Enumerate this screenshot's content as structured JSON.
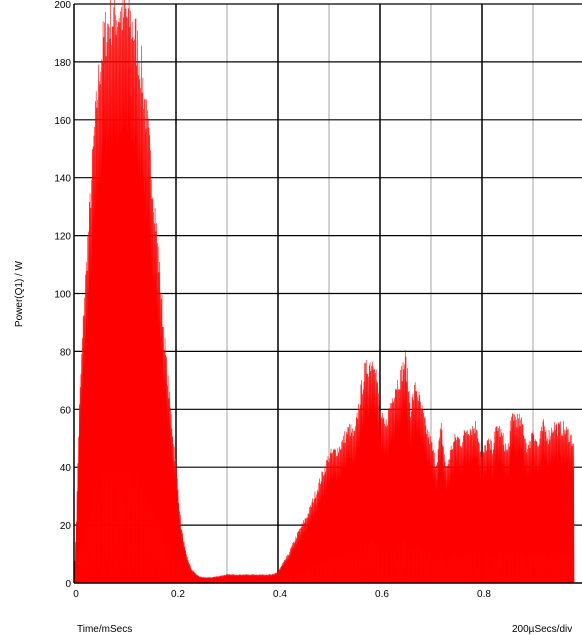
{
  "chart_data": {
    "type": "area",
    "title": "",
    "xlabel": "Time/mSecs",
    "ylabel": "Power(Q1) / W",
    "timebase_label": "200µSecs/div",
    "xlim": [
      0,
      0.98
    ],
    "ylim": [
      0,
      200
    ],
    "x_ticks": [
      0,
      0.2,
      0.4,
      0.6,
      0.8
    ],
    "x_tick_labels": [
      "0",
      "0.2",
      "0.4",
      "0.6",
      "0.8"
    ],
    "y_ticks": [
      0,
      20,
      40,
      60,
      80,
      100,
      120,
      140,
      160,
      180,
      200
    ],
    "y_tick_labels": [
      "0",
      "20",
      "40",
      "60",
      "80",
      "100",
      "120",
      "140",
      "160",
      "180",
      "200"
    ],
    "grid": true,
    "series": [
      {
        "color": "#ff0000",
        "x": [
          0,
          0.005,
          0.01,
          0.02,
          0.03,
          0.04,
          0.05,
          0.06,
          0.07,
          0.08,
          0.09,
          0.1,
          0.11,
          0.12,
          0.13,
          0.14,
          0.15,
          0.16,
          0.17,
          0.18,
          0.19,
          0.2,
          0.21,
          0.22,
          0.23,
          0.24,
          0.25,
          0.27,
          0.3,
          0.33,
          0.36,
          0.39,
          0.4,
          0.42,
          0.44,
          0.46,
          0.48,
          0.5,
          0.52,
          0.54,
          0.55,
          0.56,
          0.57,
          0.58,
          0.59,
          0.6,
          0.61,
          0.62,
          0.63,
          0.64,
          0.65,
          0.66,
          0.67,
          0.68,
          0.69,
          0.7,
          0.71,
          0.72,
          0.73,
          0.74,
          0.75,
          0.76,
          0.77,
          0.78,
          0.79,
          0.8,
          0.81,
          0.82,
          0.83,
          0.84,
          0.85,
          0.86,
          0.87,
          0.88,
          0.89,
          0.9,
          0.91,
          0.92,
          0.93,
          0.94,
          0.95,
          0.96,
          0.97,
          0.98
        ],
        "values": [
          0,
          25,
          60,
          100,
          130,
          160,
          183,
          195,
          200,
          202,
          203,
          202,
          200,
          195,
          185,
          170,
          150,
          130,
          105,
          80,
          60,
          42,
          20,
          10,
          5,
          3,
          2,
          2,
          3,
          3,
          3,
          3,
          4,
          10,
          18,
          25,
          35,
          45,
          48,
          55,
          52,
          65,
          75,
          78,
          80,
          60,
          55,
          63,
          70,
          73,
          80,
          62,
          70,
          63,
          55,
          50,
          42,
          55,
          40,
          48,
          52,
          50,
          55,
          55,
          56,
          44,
          50,
          48,
          56,
          52,
          46,
          60,
          58,
          56,
          47,
          55,
          48,
          56,
          52,
          56,
          55,
          55,
          53,
          50
        ]
      }
    ]
  }
}
